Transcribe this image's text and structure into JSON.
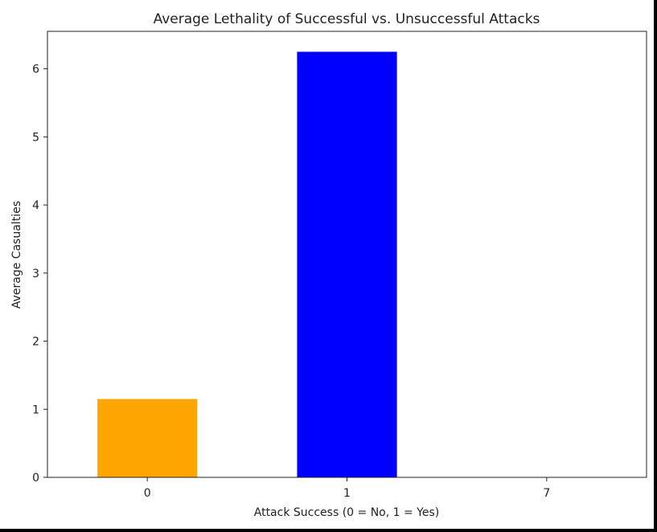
{
  "chart_data": {
    "type": "bar",
    "title": "Average Lethality of Successful vs. Unsuccessful Attacks",
    "xlabel": "Attack Success (0 = No, 1 = Yes)",
    "ylabel": "Average Casualties",
    "categories": [
      "0",
      "1",
      "7"
    ],
    "values": [
      1.15,
      6.25,
      0.0
    ],
    "colors": [
      "#ffa500",
      "#0000ff",
      "#ffa500"
    ],
    "ylim": [
      0,
      6.55
    ],
    "yticks": [
      0,
      1,
      2,
      3,
      4,
      5,
      6
    ],
    "grid": false
  }
}
